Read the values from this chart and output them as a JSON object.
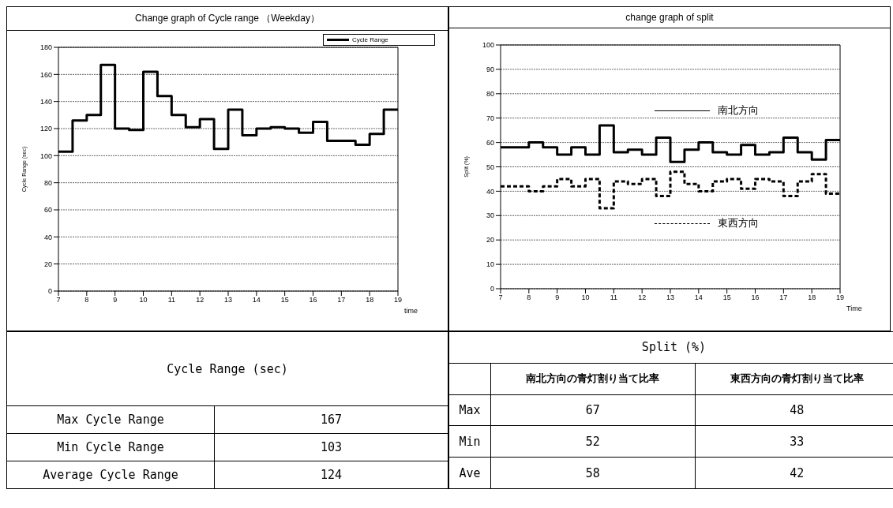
{
  "chart_data": [
    {
      "type": "step",
      "title": "Change graph of Cycle range （Weekday）",
      "xlabel": "time",
      "ylabel": "Cycle Range (sec)",
      "x": [
        7,
        7.5,
        8,
        8.5,
        9,
        9.5,
        10,
        10.5,
        11,
        11.5,
        12,
        12.5,
        13,
        13.5,
        14,
        14.5,
        15,
        15.5,
        16,
        16.5,
        17,
        17.5,
        18,
        18.5,
        19
      ],
      "series": [
        {
          "name": "Cycle Range",
          "color": "#000000",
          "line_style": "solid",
          "values": [
            103,
            126,
            130,
            167,
            120,
            119,
            162,
            144,
            130,
            121,
            127,
            105,
            134,
            115,
            120,
            121,
            120,
            117,
            125,
            111,
            111,
            108,
            116,
            134,
            134
          ]
        }
      ],
      "xlim": [
        7,
        19
      ],
      "xticks": [
        7,
        8,
        9,
        10,
        11,
        12,
        13,
        14,
        15,
        16,
        17,
        18,
        19
      ],
      "ylim": [
        0,
        180
      ],
      "yticks": [
        0,
        20,
        40,
        60,
        80,
        100,
        120,
        140,
        160,
        180
      ],
      "grid": "y",
      "legend": "top right",
      "marker": "none"
    },
    {
      "type": "step",
      "title": "change graph of split",
      "xlabel": "Time",
      "ylabel": "Split (%)",
      "x": [
        7,
        7.5,
        8,
        8.5,
        9,
        9.5,
        10,
        10.5,
        11,
        11.5,
        12,
        12.5,
        13,
        13.5,
        14,
        14.5,
        15,
        15.5,
        16,
        16.5,
        17,
        17.5,
        18,
        18.5,
        19
      ],
      "series": [
        {
          "name": "南北方向",
          "color": "#000000",
          "line_style": "solid",
          "values": [
            58,
            58,
            60,
            58,
            55,
            58,
            55,
            67,
            56,
            57,
            55,
            62,
            52,
            57,
            60,
            56,
            55,
            59,
            55,
            56,
            62,
            56,
            53,
            61,
            61
          ]
        },
        {
          "name": "東西方向",
          "color": "#000000",
          "line_style": "dashed",
          "values": [
            42,
            42,
            40,
            42,
            45,
            42,
            45,
            33,
            44,
            43,
            45,
            38,
            48,
            43,
            40,
            44,
            45,
            41,
            45,
            44,
            38,
            44,
            47,
            39,
            39
          ]
        }
      ],
      "xlim": [
        7,
        19
      ],
      "xticks": [
        7,
        8,
        9,
        10,
        11,
        12,
        13,
        14,
        15,
        16,
        17,
        18,
        19
      ],
      "ylim": [
        0,
        100
      ],
      "yticks": [
        0,
        10,
        20,
        30,
        40,
        50,
        60,
        70,
        80,
        90,
        100
      ],
      "grid": "y",
      "legend": "right",
      "marker": "none"
    },
    {
      "type": "other",
      "title": "Cycle Range (sec)",
      "categories": [
        "Max Cycle Range",
        "Min Cycle Range",
        "Average Cycle Range"
      ],
      "values": [
        167,
        103,
        124
      ],
      "data_labels": true
    },
    {
      "type": "other",
      "title": "Split (%)",
      "categories": [
        "Max",
        "Min",
        "Ave"
      ],
      "series": [
        {
          "name": "南北方向の青灯割り当て比率",
          "values": [
            67,
            52,
            58
          ]
        },
        {
          "name": "東西方向の青灯割り当て比率",
          "values": [
            48,
            33,
            42
          ]
        }
      ],
      "data_labels": true
    }
  ]
}
